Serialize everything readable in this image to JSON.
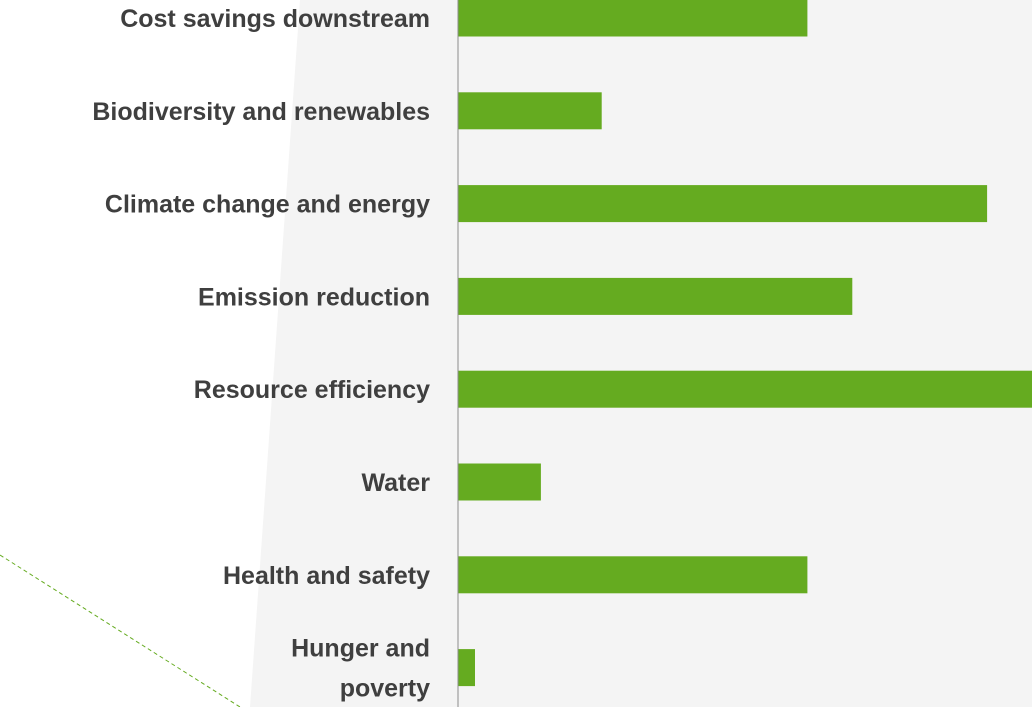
{
  "chart_data": {
    "type": "bar",
    "orientation": "horizontal",
    "categories": [
      "Cost savings downstream",
      "Biodiversity and renewables",
      "Climate change and energy",
      "Emission reduction",
      "Resource efficiency",
      "Water",
      "Health and safety",
      "Hunger and poverty"
    ],
    "values": [
      350,
      144,
      530,
      395,
      575,
      83,
      350,
      17
    ],
    "title": "",
    "xlabel": "",
    "ylabel": "",
    "xlim": [
      0,
      575
    ],
    "grid": false,
    "legend": "none"
  },
  "colors": {
    "bar": "#65ab20",
    "label": "#3f3f3f",
    "axis": "#8c8c8c",
    "panel": "#f4f4f4",
    "background": "#ffffff",
    "dashed_line": "#65ab20"
  }
}
